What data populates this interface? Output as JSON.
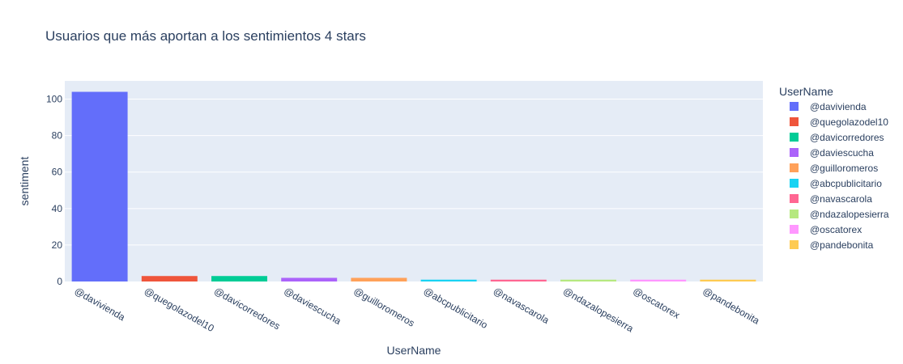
{
  "chart_data": {
    "type": "bar",
    "title": "Usuarios que más aportan a los sentimientos 4 stars",
    "xlabel": "UserName",
    "ylabel": "sentiment",
    "ylim": [
      0,
      110
    ],
    "yticks": [
      0,
      20,
      40,
      60,
      80,
      100
    ],
    "grid": true,
    "legend": {
      "title": "UserName",
      "placement": "right"
    },
    "categories": [
      "@davivienda",
      "@quegolazodel10",
      "@davicorredores",
      "@daviescucha",
      "@guilloromeros",
      "@abcpublicitario",
      "@navascarola",
      "@ndazalopesierra",
      "@oscatorex",
      "@pandebonita"
    ],
    "values": [
      104,
      3,
      3,
      2,
      2,
      1,
      1,
      1,
      1,
      1
    ],
    "colors": [
      "#636efa",
      "#EF553B",
      "#00cc96",
      "#ab63fa",
      "#FFA15A",
      "#19d3f3",
      "#FF6692",
      "#B6E880",
      "#FF97FF",
      "#FECB52"
    ]
  }
}
